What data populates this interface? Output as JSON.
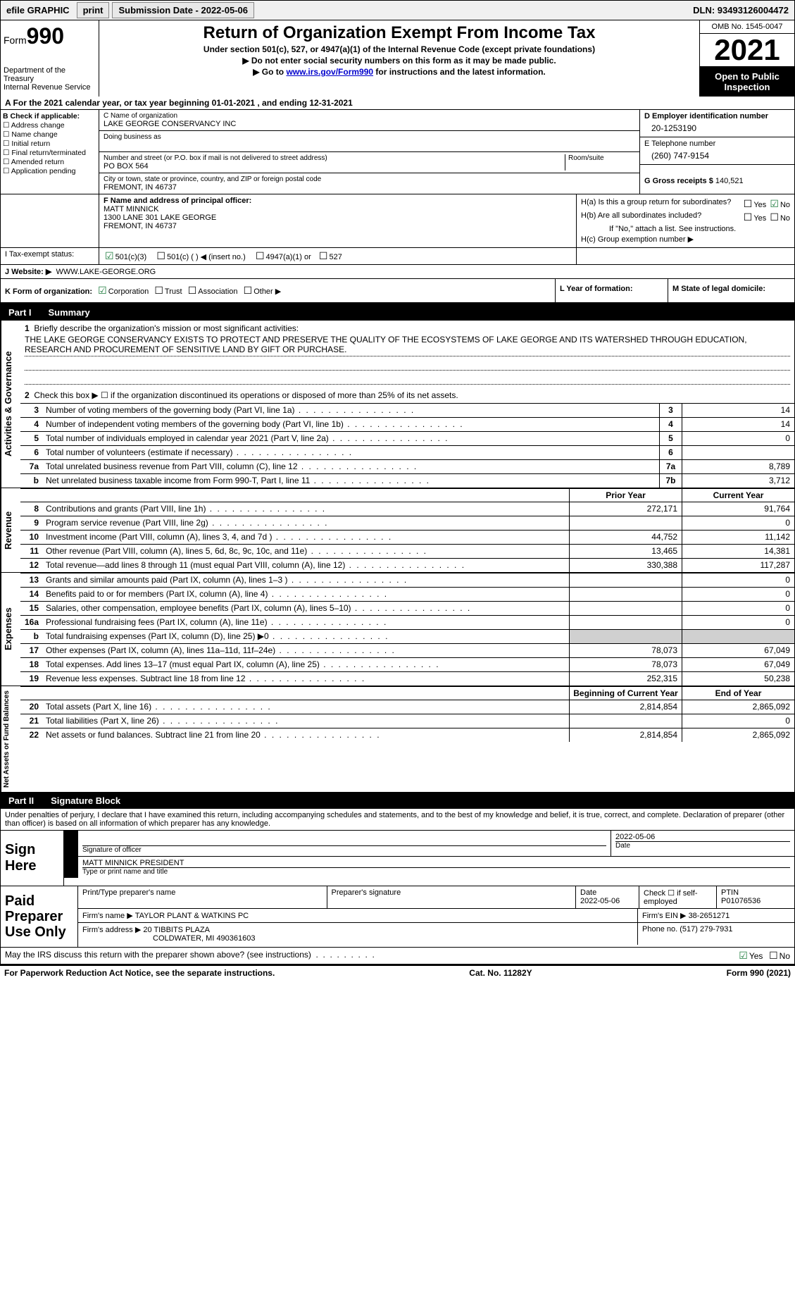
{
  "topbar": {
    "efile": "efile GRAPHIC",
    "print": "print",
    "submission": "Submission Date - 2022-05-06",
    "dln": "DLN: 93493126004472"
  },
  "header": {
    "form_label": "Form",
    "form_num": "990",
    "dept": "Department of the Treasury\nInternal Revenue Service",
    "title": "Return of Organization Exempt From Income Tax",
    "sub1": "Under section 501(c), 527, or 4947(a)(1) of the Internal Revenue Code (except private foundations)",
    "sub2": "Do not enter social security numbers on this form as it may be made public.",
    "sub3_pre": "Go to ",
    "sub3_link": "www.irs.gov/Form990",
    "sub3_post": " for instructions and the latest information.",
    "omb": "OMB No. 1545-0047",
    "year": "2021",
    "open": "Open to Public Inspection"
  },
  "row_a": "A For the 2021 calendar year, or tax year beginning 01-01-2021   , and ending 12-31-2021",
  "col_b": {
    "label": "B Check if applicable:",
    "opts": [
      "Address change",
      "Name change",
      "Initial return",
      "Final return/terminated",
      "Amended return",
      "Application pending"
    ]
  },
  "col_c": {
    "name_lbl": "C Name of organization",
    "name": "LAKE GEORGE CONSERVANCY INC",
    "dba_lbl": "Doing business as",
    "addr_lbl": "Number and street (or P.O. box if mail is not delivered to street address)",
    "room_lbl": "Room/suite",
    "addr": "PO BOX 564",
    "city_lbl": "City or town, state or province, country, and ZIP or foreign postal code",
    "city": "FREMONT, IN  46737"
  },
  "col_d": {
    "ein_lbl": "D Employer identification number",
    "ein": "20-1253190",
    "tel_lbl": "E Telephone number",
    "tel": "(260) 747-9154",
    "gross_lbl": "G Gross receipts $",
    "gross": "140,521"
  },
  "col_f": {
    "lbl": "F  Name and address of principal officer:",
    "name": "MATT MINNICK",
    "addr1": "1300 LANE 301 LAKE GEORGE",
    "addr2": "FREMONT, IN  46737"
  },
  "col_h": {
    "ha": "H(a)  Is this a group return for subordinates?",
    "hb": "H(b)  Are all subordinates included?",
    "hb_note": "If \"No,\" attach a list. See instructions.",
    "hc": "H(c)  Group exemption number ▶",
    "yes": "Yes",
    "no": "No"
  },
  "row_i": {
    "lbl": "I  Tax-exempt status:",
    "o1": "501(c)(3)",
    "o2": "501(c) (  ) ◀ (insert no.)",
    "o3": "4947(a)(1) or",
    "o4": "527"
  },
  "row_j": {
    "lbl": "J  Website: ▶",
    "val": "WWW.LAKE-GEORGE.ORG"
  },
  "row_k": {
    "lbl": "K Form of organization:",
    "o1": "Corporation",
    "o2": "Trust",
    "o3": "Association",
    "o4": "Other ▶",
    "l": "L Year of formation:",
    "m": "M State of legal domicile:"
  },
  "part1": {
    "label": "Part I",
    "title": "Summary"
  },
  "section_ag": {
    "vtab": "Activities & Governance",
    "l1": "Briefly describe the organization's mission or most significant activities:",
    "mission": "THE LAKE GEORGE CONSERVANCY EXISTS TO PROTECT AND PRESERVE THE QUALITY OF THE ECOSYSTEMS OF LAKE GEORGE AND ITS WATERSHED THROUGH EDUCATION, RESEARCH AND PROCUREMENT OF SENSITIVE LAND BY GIFT OR PURCHASE.",
    "l2": "Check this box ▶ ☐  if the organization discontinued its operations or disposed of more than 25% of its net assets.",
    "rows": [
      {
        "n": "3",
        "d": "Number of voting members of the governing body (Part VI, line 1a)",
        "b": "3",
        "v": "14"
      },
      {
        "n": "4",
        "d": "Number of independent voting members of the governing body (Part VI, line 1b)",
        "b": "4",
        "v": "14"
      },
      {
        "n": "5",
        "d": "Total number of individuals employed in calendar year 2021 (Part V, line 2a)",
        "b": "5",
        "v": "0"
      },
      {
        "n": "6",
        "d": "Total number of volunteers (estimate if necessary)",
        "b": "6",
        "v": ""
      },
      {
        "n": "7a",
        "d": "Total unrelated business revenue from Part VIII, column (C), line 12",
        "b": "7a",
        "v": "8,789"
      },
      {
        "n": "b",
        "d": "Net unrelated business taxable income from Form 990-T, Part I, line 11",
        "b": "7b",
        "v": "3,712"
      }
    ]
  },
  "section_rev": {
    "vtab": "Revenue",
    "hdr_prior": "Prior Year",
    "hdr_curr": "Current Year",
    "rows": [
      {
        "n": "8",
        "d": "Contributions and grants (Part VIII, line 1h)",
        "p": "272,171",
        "c": "91,764"
      },
      {
        "n": "9",
        "d": "Program service revenue (Part VIII, line 2g)",
        "p": "",
        "c": "0"
      },
      {
        "n": "10",
        "d": "Investment income (Part VIII, column (A), lines 3, 4, and 7d )",
        "p": "44,752",
        "c": "11,142"
      },
      {
        "n": "11",
        "d": "Other revenue (Part VIII, column (A), lines 5, 6d, 8c, 9c, 10c, and 11e)",
        "p": "13,465",
        "c": "14,381"
      },
      {
        "n": "12",
        "d": "Total revenue—add lines 8 through 11 (must equal Part VIII, column (A), line 12)",
        "p": "330,388",
        "c": "117,287"
      }
    ]
  },
  "section_exp": {
    "vtab": "Expenses",
    "rows": [
      {
        "n": "13",
        "d": "Grants and similar amounts paid (Part IX, column (A), lines 1–3 )",
        "p": "",
        "c": "0"
      },
      {
        "n": "14",
        "d": "Benefits paid to or for members (Part IX, column (A), line 4)",
        "p": "",
        "c": "0"
      },
      {
        "n": "15",
        "d": "Salaries, other compensation, employee benefits (Part IX, column (A), lines 5–10)",
        "p": "",
        "c": "0"
      },
      {
        "n": "16a",
        "d": "Professional fundraising fees (Part IX, column (A), line 11e)",
        "p": "",
        "c": "0"
      },
      {
        "n": "b",
        "d": "Total fundraising expenses (Part IX, column (D), line 25) ▶0",
        "p": "shade",
        "c": "shade"
      },
      {
        "n": "17",
        "d": "Other expenses (Part IX, column (A), lines 11a–11d, 11f–24e)",
        "p": "78,073",
        "c": "67,049"
      },
      {
        "n": "18",
        "d": "Total expenses. Add lines 13–17 (must equal Part IX, column (A), line 25)",
        "p": "78,073",
        "c": "67,049"
      },
      {
        "n": "19",
        "d": "Revenue less expenses. Subtract line 18 from line 12",
        "p": "252,315",
        "c": "50,238"
      }
    ]
  },
  "section_na": {
    "vtab": "Net Assets or Fund Balances",
    "hdr_beg": "Beginning of Current Year",
    "hdr_end": "End of Year",
    "rows": [
      {
        "n": "20",
        "d": "Total assets (Part X, line 16)",
        "p": "2,814,854",
        "c": "2,865,092"
      },
      {
        "n": "21",
        "d": "Total liabilities (Part X, line 26)",
        "p": "",
        "c": "0"
      },
      {
        "n": "22",
        "d": "Net assets or fund balances. Subtract line 21 from line 20",
        "p": "2,814,854",
        "c": "2,865,092"
      }
    ]
  },
  "part2": {
    "label": "Part II",
    "title": "Signature Block"
  },
  "sig": {
    "intro": "Under penalties of perjury, I declare that I have examined this return, including accompanying schedules and statements, and to the best of my knowledge and belief, it is true, correct, and complete. Declaration of preparer (other than officer) is based on all information of which preparer has any knowledge.",
    "sign_here": "Sign Here",
    "sig_officer": "Signature of officer",
    "date": "2022-05-06",
    "date_lbl": "Date",
    "name": "MATT MINNICK  PRESIDENT",
    "name_lbl": "Type or print name and title"
  },
  "prep": {
    "label": "Paid Preparer Use Only",
    "h1": "Print/Type preparer's name",
    "h2": "Preparer's signature",
    "h3": "Date",
    "h3v": "2022-05-06",
    "h4": "Check ☐ if self-employed",
    "h5": "PTIN",
    "h5v": "P01076536",
    "firm_lbl": "Firm's name      ▶",
    "firm": "TAYLOR PLANT & WATKINS PC",
    "ein_lbl": "Firm's EIN ▶",
    "ein": "38-2651271",
    "addr_lbl": "Firm's address ▶",
    "addr1": "20 TIBBITS PLAZA",
    "addr2": "COLDWATER, MI  490361603",
    "phone_lbl": "Phone no.",
    "phone": "(517) 279-7931"
  },
  "irs_q": {
    "q": "May the IRS discuss this return with the preparer shown above? (see instructions)",
    "yes": "Yes",
    "no": "No"
  },
  "footer": {
    "l": "For Paperwork Reduction Act Notice, see the separate instructions.",
    "c": "Cat. No. 11282Y",
    "r": "Form 990 (2021)"
  }
}
